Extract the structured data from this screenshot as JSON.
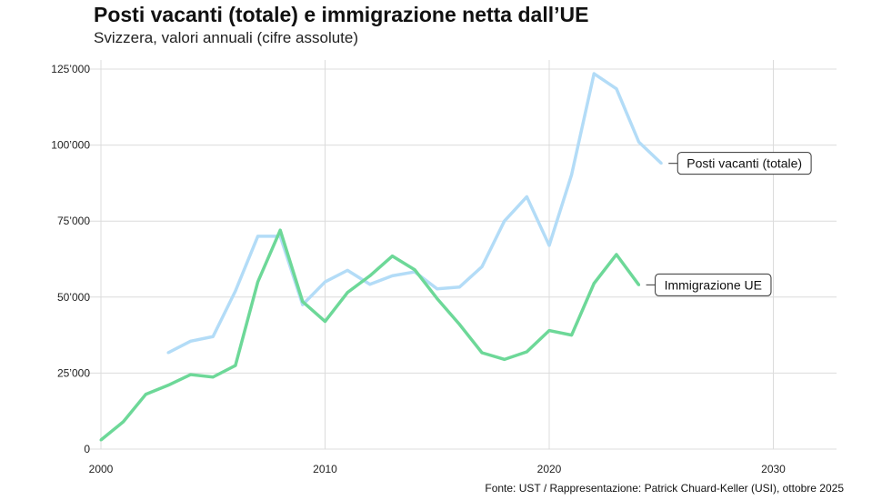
{
  "chart_data": {
    "type": "line",
    "title": "Posti vacanti (totale) e immigrazione netta dall’UE",
    "subtitle": "Svizzera, valori annuali (cifre assolute)",
    "source": "Fonte: UST / Rappresentazione: Patrick Chuard-Keller (USI), ottobre 2025",
    "xlabel": "",
    "ylabel": "",
    "xlim": [
      2000,
      2033
    ],
    "ylim": [
      0,
      128000
    ],
    "x_ticks": [
      2000,
      2010,
      2020,
      2030
    ],
    "x_tick_labels": [
      "2000",
      "2010",
      "2020",
      "2030"
    ],
    "y_ticks": [
      0,
      25000,
      50000,
      75000,
      100000,
      125000
    ],
    "y_tick_labels": [
      "0",
      "25’000",
      "50’000",
      "75’000",
      "100’000",
      "125’000"
    ],
    "grid": true,
    "series": [
      {
        "name": "Posti vacanti (totale)",
        "color": "#b3dcf7",
        "x": [
          2003,
          2004,
          2005,
          2006,
          2007,
          2008,
          2009,
          2010,
          2011,
          2012,
          2013,
          2014,
          2015,
          2016,
          2017,
          2018,
          2019,
          2020,
          2021,
          2022,
          2023,
          2024,
          2025
        ],
        "values": [
          31700,
          35500,
          37000,
          52000,
          70000,
          70000,
          47500,
          55000,
          58800,
          54200,
          57000,
          58300,
          52700,
          53300,
          60000,
          75000,
          83000,
          67000,
          90300,
          123500,
          118500,
          101000,
          94000
        ]
      },
      {
        "name": "Immigrazione UE",
        "color": "#6dd898",
        "x": [
          2000,
          2001,
          2002,
          2003,
          2004,
          2005,
          2006,
          2007,
          2008,
          2009,
          2010,
          2011,
          2012,
          2013,
          2014,
          2015,
          2016,
          2017,
          2018,
          2019,
          2020,
          2021,
          2022,
          2023,
          2024
        ],
        "values": [
          3000,
          9000,
          18000,
          21000,
          24500,
          23700,
          27500,
          55000,
          72000,
          48500,
          42000,
          51500,
          57000,
          63500,
          59000,
          49500,
          41000,
          31700,
          29500,
          32000,
          39000,
          37500,
          54500,
          64000,
          54000
        ]
      }
    ]
  }
}
